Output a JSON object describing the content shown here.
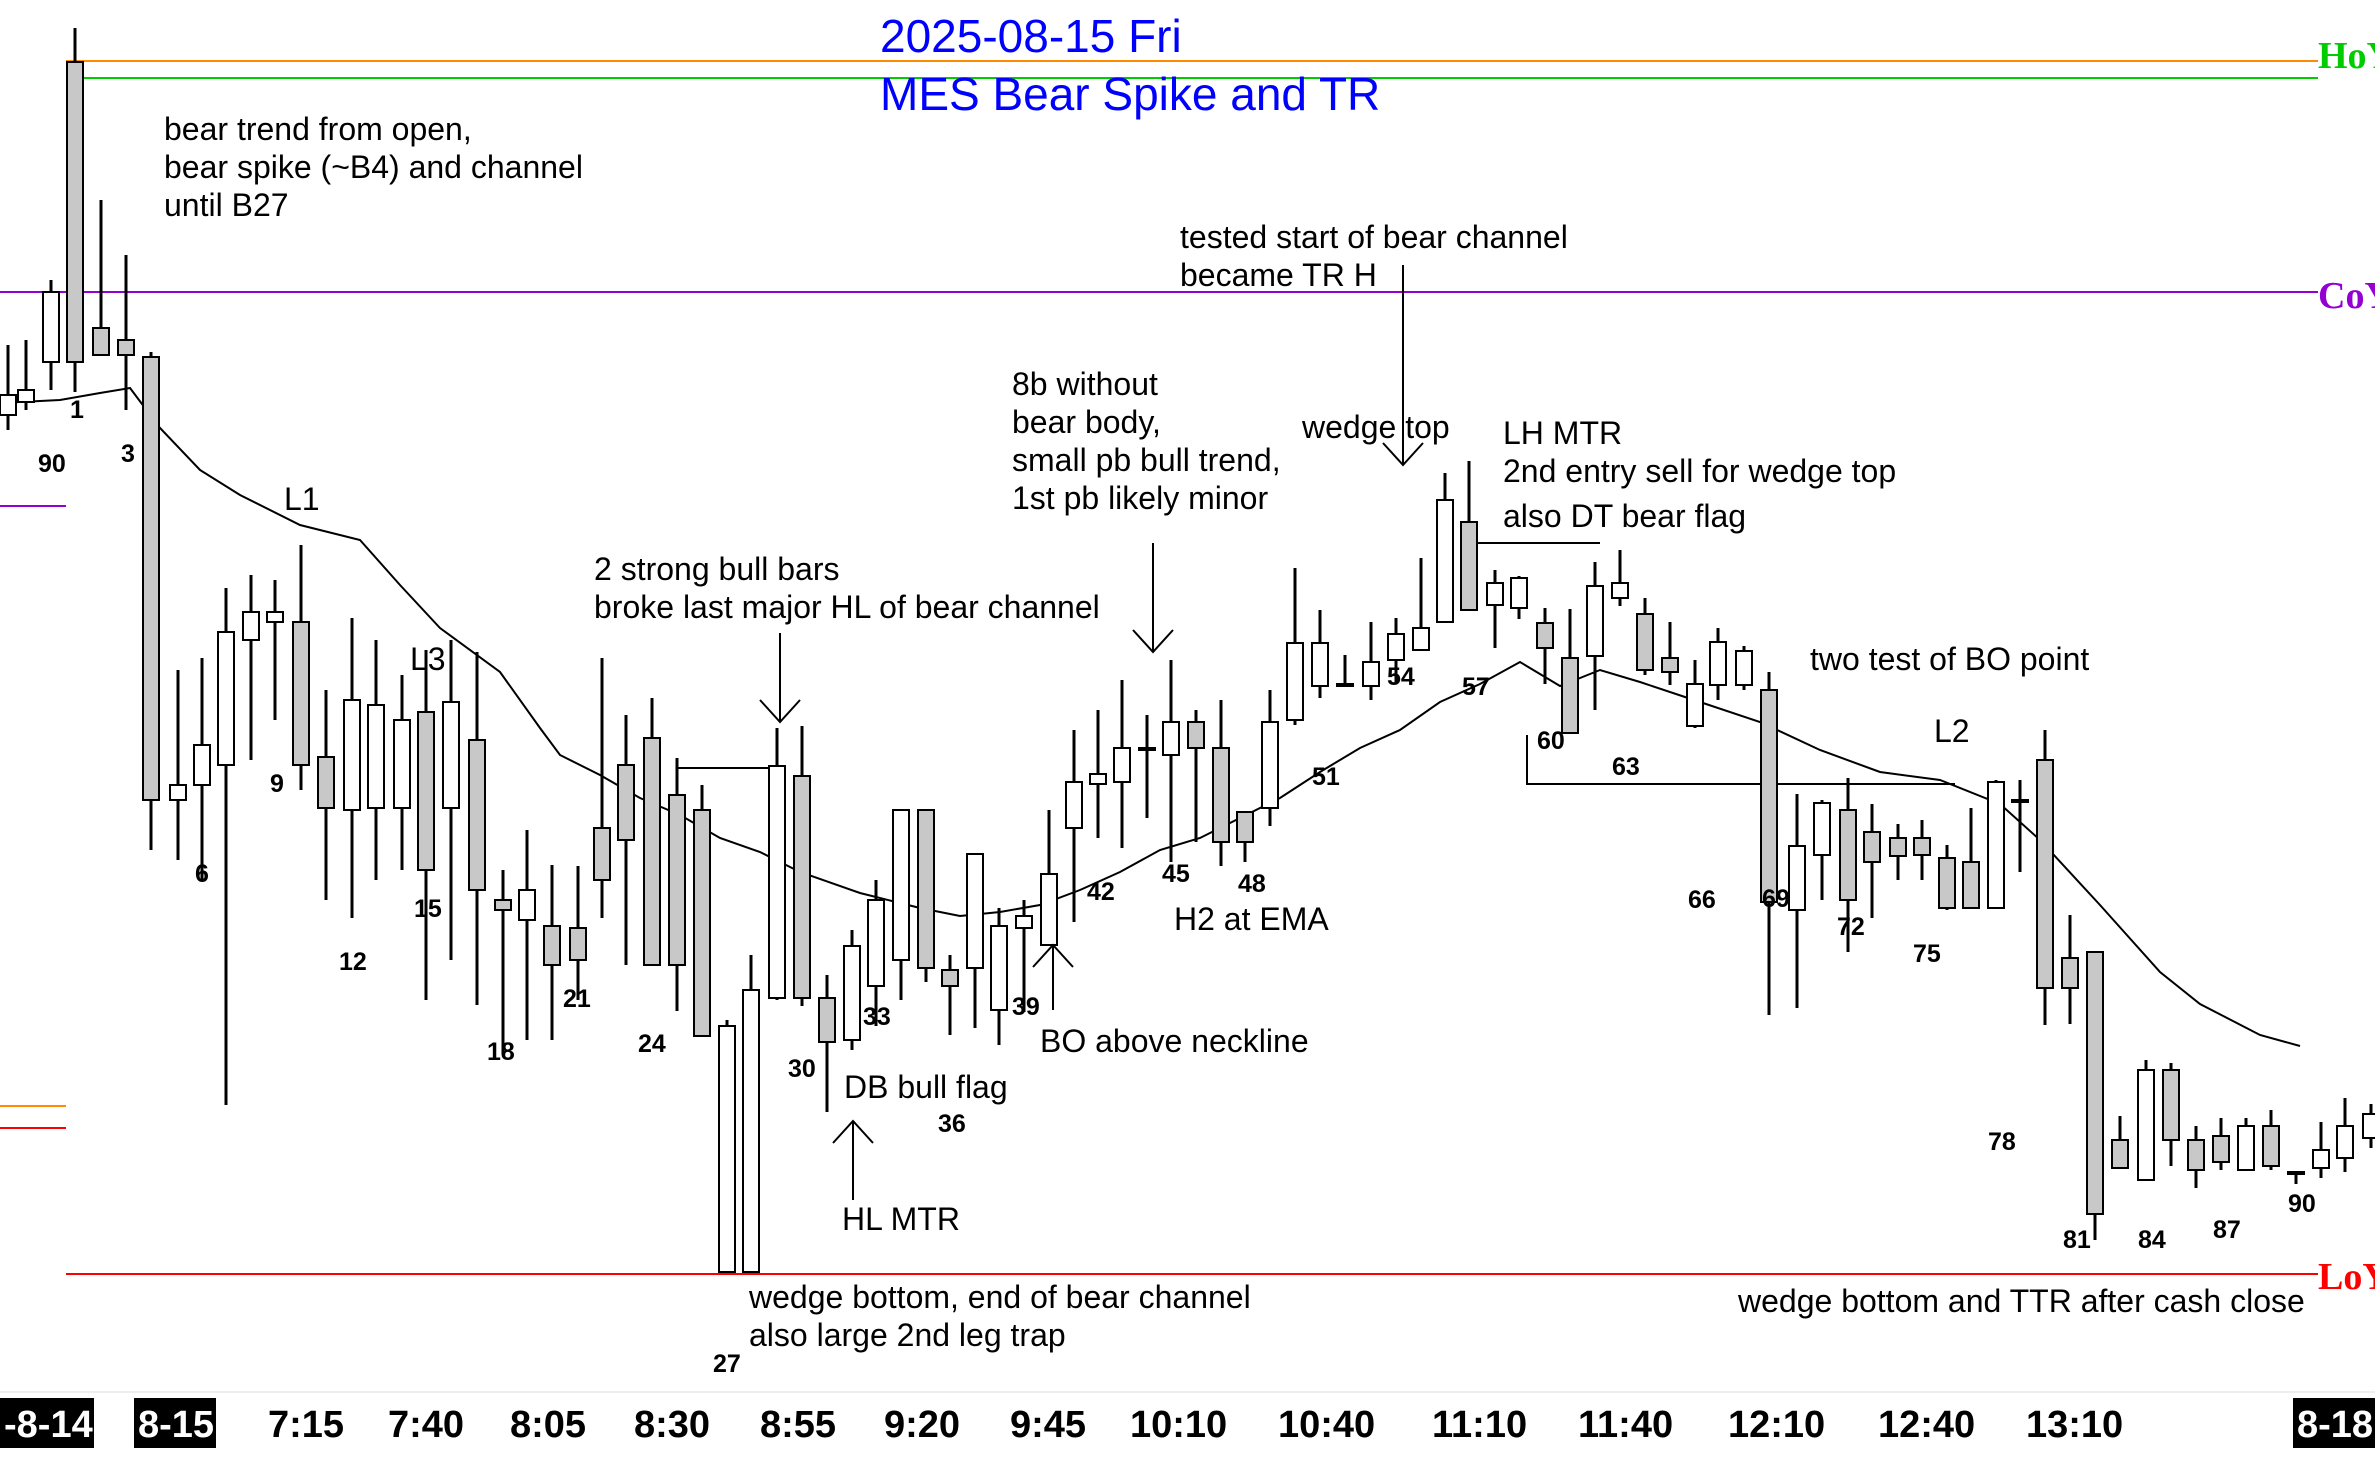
{
  "chart_data": {
    "type": "candlestick",
    "title": "2025-08-15 Fri",
    "subtitle": "MES Bear Spike and TR",
    "ylim": [
      0,
      1
    ],
    "reference_lines": [
      {
        "label": "HoY",
        "color": "#ff8c00",
        "label_color": "#00cc00"
      },
      {
        "label": "CoY",
        "color": "#9400d3",
        "label_color": "#9400d3"
      },
      {
        "label": "LoY",
        "color": "#ff0000",
        "label_color": "#ff0000"
      }
    ],
    "time_labels": [
      "-8-14",
      "8-15",
      "7:15",
      "7:40",
      "8:05",
      "8:30",
      "8:55",
      "9:20",
      "9:45",
      "10:10",
      "10:40",
      "11:10",
      "11:40",
      "12:10",
      "12:40",
      "13:10",
      "8-18"
    ],
    "bar_labels": [
      "90",
      "1",
      "3",
      "6",
      "9",
      "12",
      "15",
      "18",
      "21",
      "24",
      "27",
      "30",
      "33",
      "36",
      "39",
      "42",
      "45",
      "48",
      "51",
      "54",
      "57",
      "60",
      "63",
      "66",
      "69",
      "72",
      "75",
      "78",
      "81",
      "84",
      "87",
      "90"
    ],
    "bar_markers": [
      "L1",
      "L3",
      "L2"
    ],
    "annotations": [
      "bear trend from open,",
      "bear spike (~B4) and channel",
      "until B27",
      "2 strong bull bars",
      "broke last major HL of bear channel",
      "8b without",
      "bear body,",
      "small pb bull trend,",
      "1st pb likely minor",
      "tested start of bear channel",
      "became TR H",
      "wedge top",
      "LH MTR",
      "2nd entry sell for wedge top",
      "also DT bear flag",
      "two test of BO point",
      "H2 at EMA",
      "BO above neckline",
      "DB bull flag",
      "HL MTR",
      "wedge bottom, end of bear channel",
      "also large 2nd leg trap",
      "wedge bottom and TTR after cash close"
    ],
    "grid": false,
    "legend": "none"
  },
  "colors": {
    "bull_fill": "#ffffff",
    "bear_fill": "#c8c8c8",
    "ema": "#000000",
    "title": "#0000ff"
  }
}
